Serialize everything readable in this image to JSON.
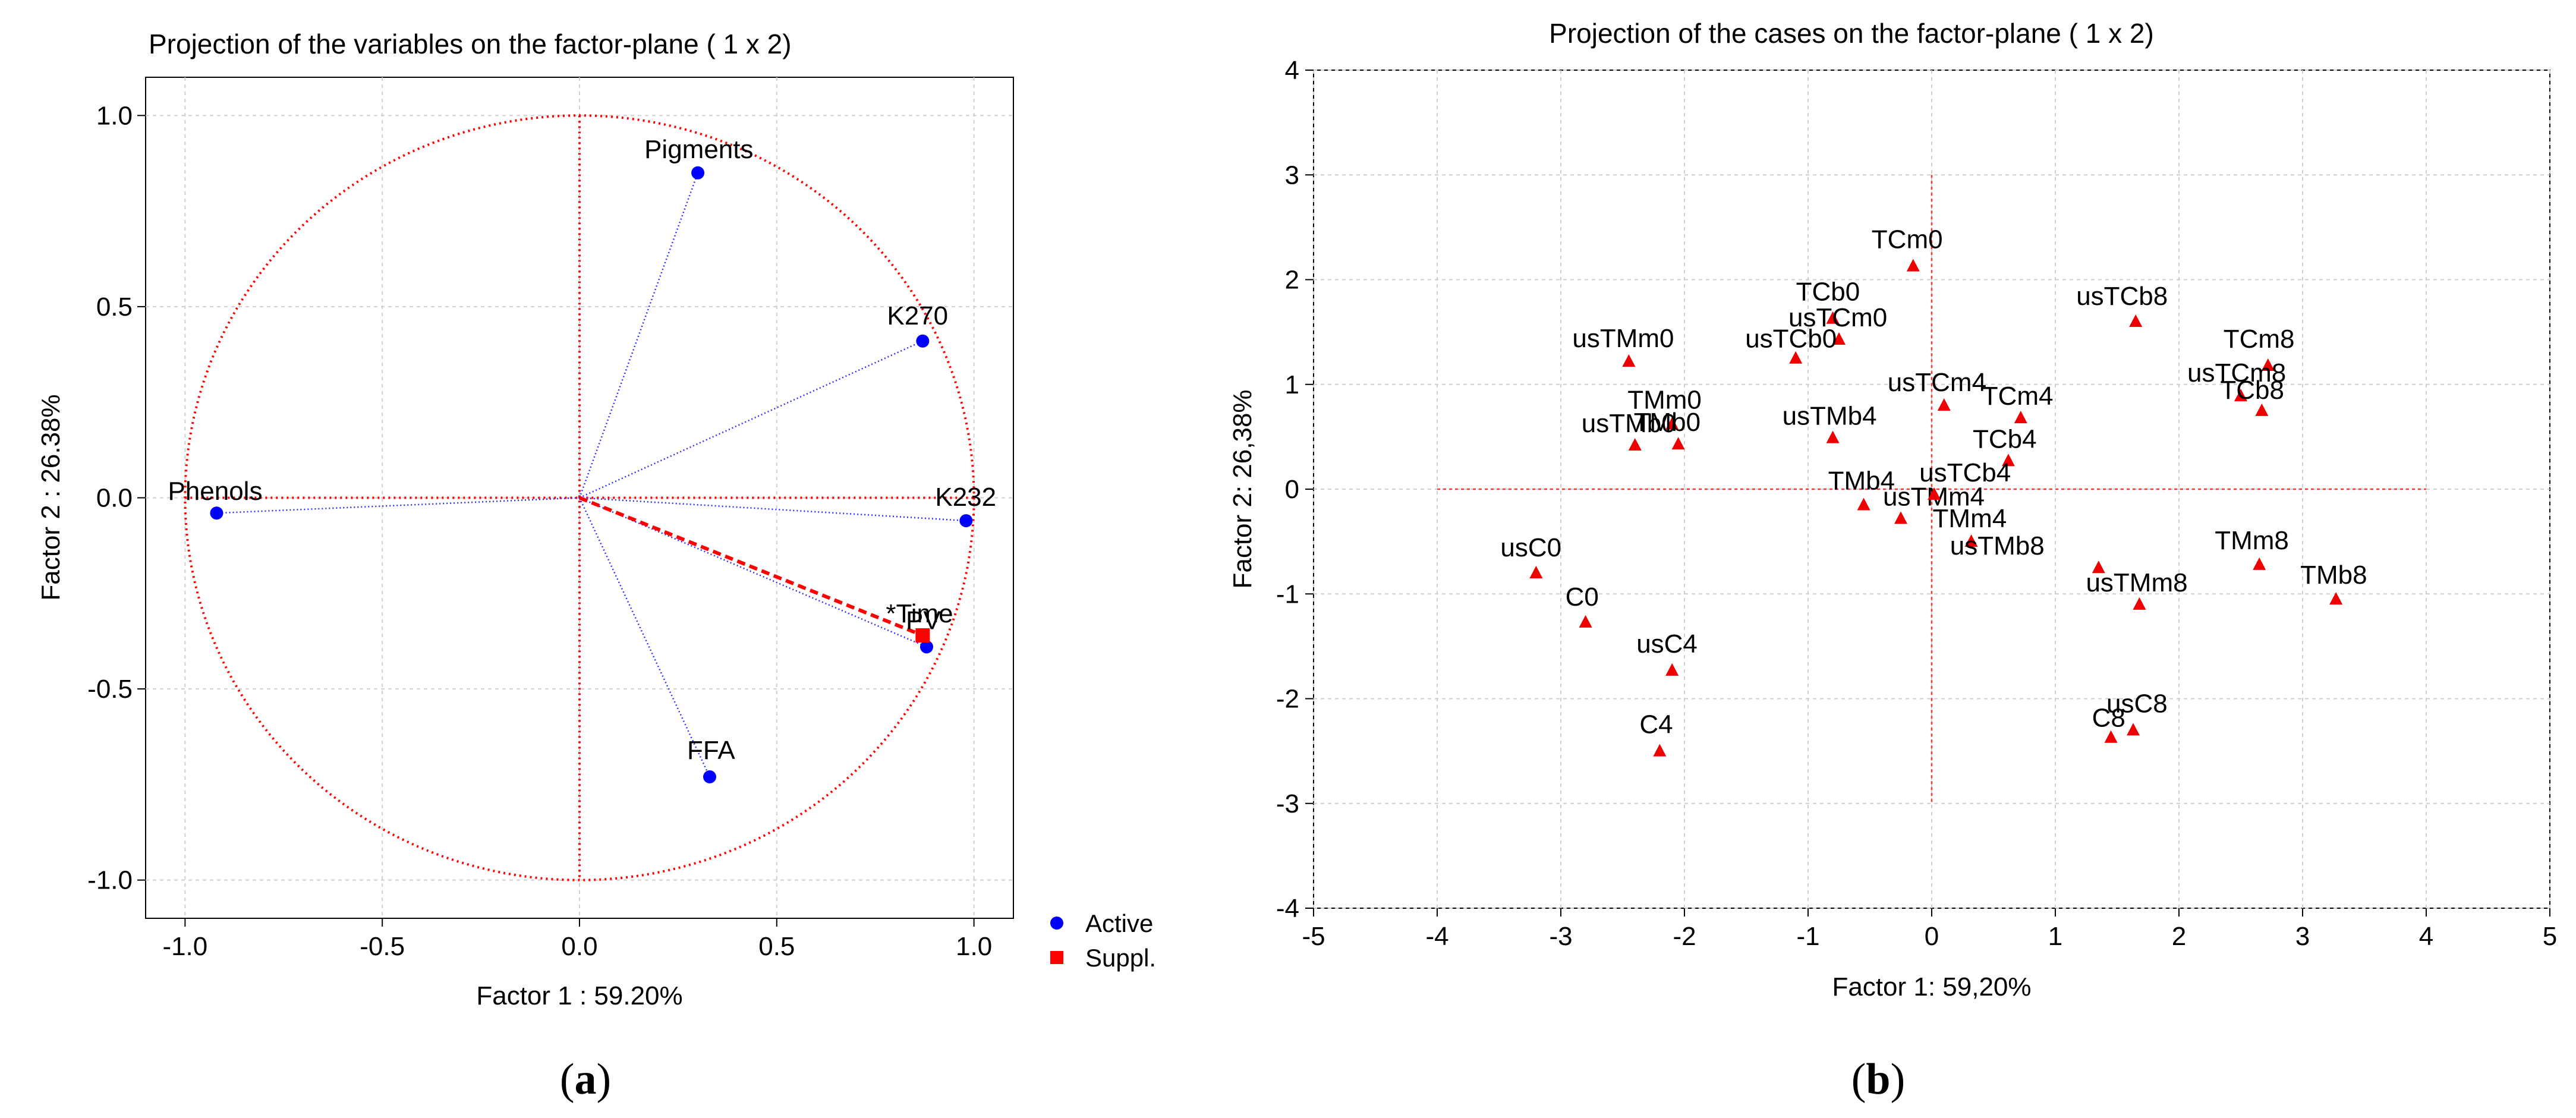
{
  "chart_data": [
    {
      "type": "scatter",
      "title": "Projection of the variables on the factor-plane ( 1 x 2)",
      "xlabel": "Factor 1 : 59.20%",
      "ylabel": "Factor 2 : 26.38%",
      "xlim": [
        -1.1,
        1.1
      ],
      "ylim": [
        -1.1,
        1.1
      ],
      "xticks": [
        "-1.0",
        "-0.5",
        "0.0",
        "0.5",
        "1.0"
      ],
      "yticks": [
        "1.0",
        "0.5",
        "0.0",
        "-0.5",
        "-1.0"
      ],
      "grid": true,
      "unit_circle": true,
      "caption": "a",
      "legend": [
        {
          "label": "Active",
          "color": "#0000ff",
          "marker": "circle"
        },
        {
          "label": "Suppl.",
          "color": "#ff0000",
          "marker": "square"
        }
      ],
      "points": [
        {
          "label": "Pigments",
          "x": 0.3,
          "y": 0.85,
          "kind": "active"
        },
        {
          "label": "K270",
          "x": 0.87,
          "y": 0.41,
          "kind": "active"
        },
        {
          "label": "K232",
          "x": 0.98,
          "y": -0.06,
          "kind": "active"
        },
        {
          "label": "PV",
          "x": 0.88,
          "y": -0.39,
          "kind": "active"
        },
        {
          "label": "FFA",
          "x": 0.33,
          "y": -0.73,
          "kind": "active"
        },
        {
          "label": "Phenols",
          "x": -0.92,
          "y": -0.04,
          "kind": "active"
        },
        {
          "label": "*Time",
          "x": 0.87,
          "y": -0.36,
          "kind": "suppl"
        }
      ]
    },
    {
      "type": "scatter",
      "title": "Projection of the cases on the factor-plane ( 1 x 2)",
      "xlabel": "Factor 1: 59,20%",
      "ylabel": "Factor 2: 26,38%",
      "xlim": [
        -5,
        5
      ],
      "ylim": [
        -4,
        4
      ],
      "xticks": [
        "-5",
        "-4",
        "-3",
        "-2",
        "-1",
        "0",
        "1",
        "2",
        "3",
        "4",
        "5"
      ],
      "yticks": [
        "4",
        "3",
        "2",
        "1",
        "0",
        "-1",
        "-2",
        "-3",
        "-4"
      ],
      "grid": true,
      "caption": "b",
      "points": [
        {
          "label": "TCm0",
          "x": -0.15,
          "y": 2.13
        },
        {
          "label": "TCb0",
          "x": -0.8,
          "y": 1.63
        },
        {
          "label": "usTCm0",
          "x": -0.75,
          "y": 1.43
        },
        {
          "label": "usTCb0",
          "x": -1.1,
          "y": 1.25
        },
        {
          "label": "usTMm0",
          "x": -2.45,
          "y": 1.22
        },
        {
          "label": "TMm0",
          "x": -2.1,
          "y": 0.62
        },
        {
          "label": "usTMb0",
          "x": -2.4,
          "y": 0.42
        },
        {
          "label": "TMb0",
          "x": -2.05,
          "y": 0.43
        },
        {
          "label": "usTMb4",
          "x": -0.8,
          "y": 0.49
        },
        {
          "label": "usTCm4",
          "x": 0.1,
          "y": 0.8
        },
        {
          "label": "TCm4",
          "x": 0.72,
          "y": 0.68
        },
        {
          "label": "TCb4",
          "x": 0.62,
          "y": 0.27
        },
        {
          "label": "TMb4",
          "x": -0.55,
          "y": -0.15
        },
        {
          "label": "usTMm4",
          "x": -0.25,
          "y": -0.28
        },
        {
          "label": "usTCb4",
          "x": 0.02,
          "y": -0.05
        },
        {
          "label": "TMm4",
          "x": 0.32,
          "y": -0.5
        },
        {
          "label": "usTCb8",
          "x": 1.65,
          "y": 1.6
        },
        {
          "label": "TCm8",
          "x": 2.72,
          "y": 1.18
        },
        {
          "label": "usTCm8",
          "x": 2.5,
          "y": 0.89
        },
        {
          "label": "TCb8",
          "x": 2.67,
          "y": 0.75
        },
        {
          "label": "usTMb8",
          "x": 1.35,
          "y": -0.75
        },
        {
          "label": "usTMm8",
          "x": 1.68,
          "y": -1.1
        },
        {
          "label": "TMm8",
          "x": 2.65,
          "y": -0.72
        },
        {
          "label": "TMb8",
          "x": 3.27,
          "y": -1.05
        },
        {
          "label": "usC0",
          "x": -3.2,
          "y": -0.8
        },
        {
          "label": "C0",
          "x": -2.8,
          "y": -1.27
        },
        {
          "label": "usC4",
          "x": -2.1,
          "y": -1.73
        },
        {
          "label": "C4",
          "x": -2.2,
          "y": -2.5
        },
        {
          "label": "C8",
          "x": 1.45,
          "y": -2.37
        },
        {
          "label": "usC8",
          "x": 1.63,
          "y": -2.3
        }
      ]
    }
  ]
}
